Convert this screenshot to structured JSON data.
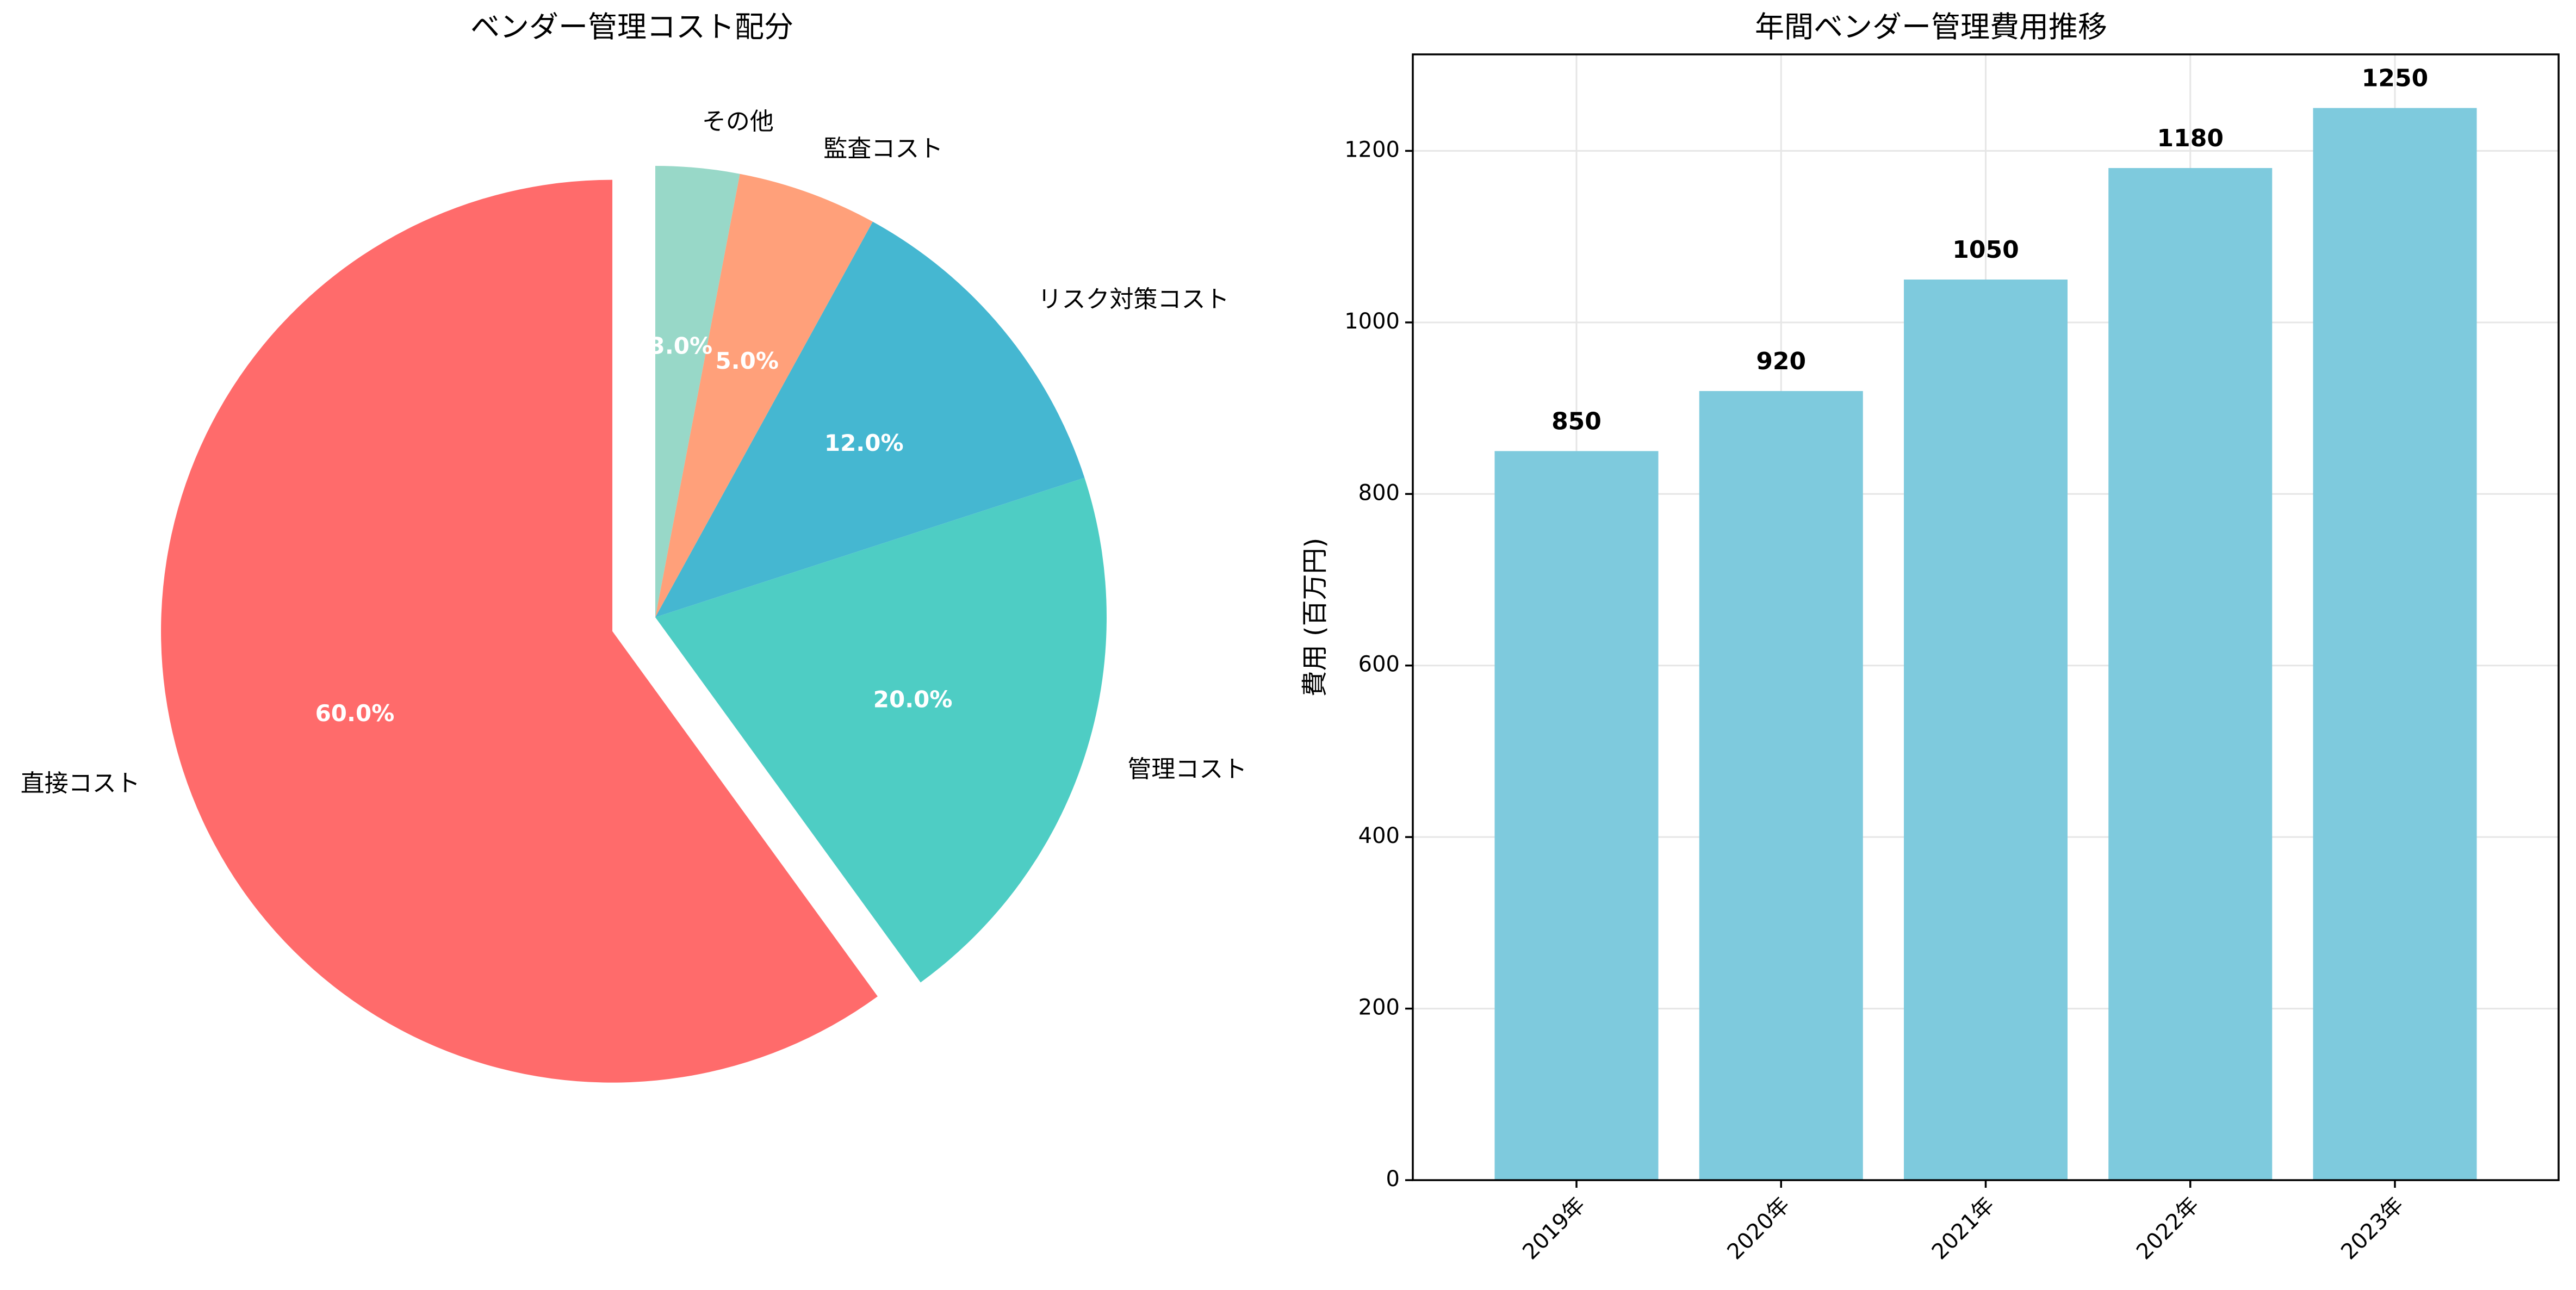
{
  "chart_data": [
    {
      "type": "pie",
      "title": "ベンダー管理コスト配分",
      "labels": [
        "直接コスト",
        "管理コスト",
        "リスク対策コスト",
        "監査コスト",
        "その他"
      ],
      "values": [
        60,
        20,
        12,
        5,
        3
      ],
      "percent_labels": [
        "60.0%",
        "20.0%",
        "12.0%",
        "5.0%",
        "3.0%"
      ],
      "colors": [
        "#ff6b6b",
        "#4ecdc4",
        "#45b7d1",
        "#ffa07a",
        "#98d8c8"
      ],
      "exploded": [
        "直接コスト"
      ],
      "start_angle_deg": 90,
      "direction": "counterclockwise"
    },
    {
      "type": "bar",
      "title": "年間ベンダー管理費用推移",
      "categories": [
        "2019年",
        "2020年",
        "2021年",
        "2022年",
        "2023年"
      ],
      "values": [
        850,
        920,
        1050,
        1180,
        1250
      ],
      "value_labels": [
        "850",
        "920",
        "1050",
        "1180",
        "1250"
      ],
      "xlabel": "",
      "ylabel": "費用 (百万円)",
      "ylim": [
        0,
        1312.5
      ],
      "yticks": [
        0,
        200,
        400,
        600,
        800,
        1000,
        1200
      ],
      "color": "#7ecadd",
      "grid": true
    }
  ]
}
